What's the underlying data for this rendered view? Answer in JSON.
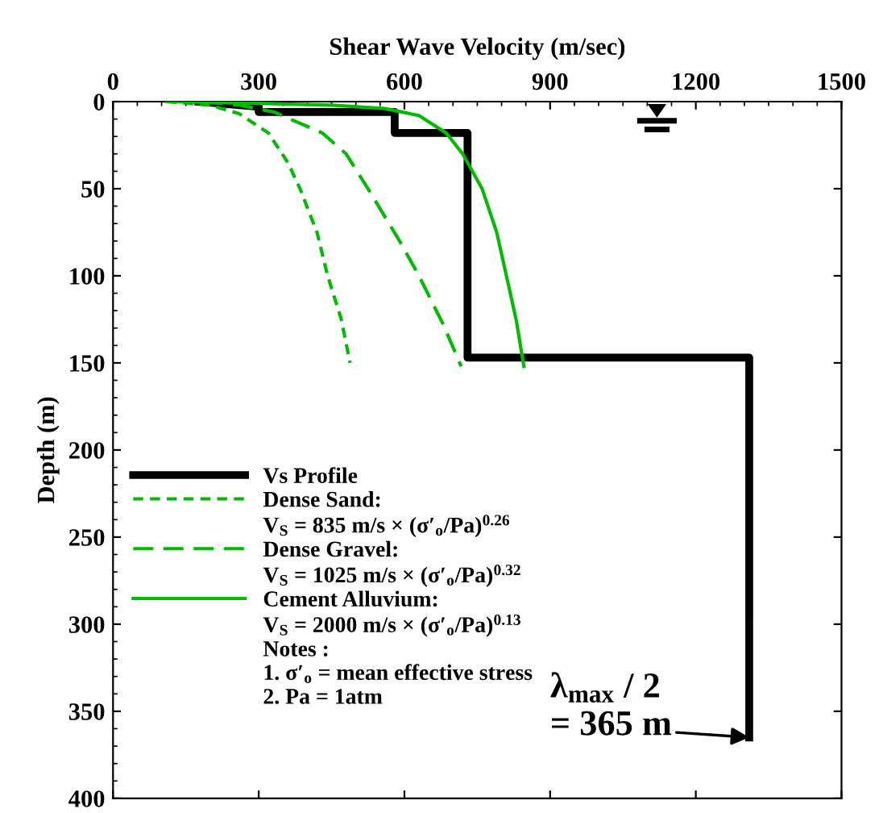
{
  "chart_data": {
    "type": "line",
    "xlabel": "Shear Wave Velocity (m/sec)",
    "ylabel": "Depth (m)",
    "xlim": [
      0,
      1500
    ],
    "xticks": [
      0,
      300,
      600,
      900,
      1200,
      1500
    ],
    "ylim": [
      400,
      0
    ],
    "yticks": [
      0,
      50,
      100,
      150,
      200,
      250,
      300,
      350,
      400
    ],
    "series": [
      {
        "name": "Vs Profile",
        "color": "#000000",
        "line_style": "solid",
        "x": [
          176,
          300,
          300,
          580,
          580,
          730,
          730,
          1310,
          1310
        ],
        "values": [
          0,
          3,
          6,
          6,
          18,
          18,
          147,
          147,
          365
        ]
      },
      {
        "name": "Dense Sand:",
        "color": "#00bb00",
        "line_style": "dashed",
        "x": [
          110,
          200,
          260,
          320,
          360,
          385,
          420,
          442,
          470,
          488
        ],
        "values": [
          0,
          2,
          7,
          18,
          35,
          50,
          75,
          100,
          125,
          150
        ]
      },
      {
        "name": "Dense Gravel:",
        "color": "#00bb00",
        "line_style": "longdash",
        "x": [
          185,
          260,
          332,
          431,
          480,
          525,
          590,
          630,
          680,
          717
        ],
        "values": [
          0,
          2,
          6,
          18,
          30,
          50,
          80,
          100,
          128,
          152
        ]
      },
      {
        "name": "Cement Alluvium:",
        "color": "#00bb00",
        "line_style": "solid",
        "x": [
          110,
          300,
          450,
          560,
          630,
          686,
          720,
          760,
          790,
          810,
          830,
          846
        ],
        "values": [
          0,
          1,
          2,
          4,
          8,
          18,
          30,
          50,
          75,
          100,
          125,
          152
        ]
      }
    ],
    "annotations": [
      "V$_{S}$ = 835 m/s × (σ′$_{o}$/Pa)$^{0.26}$",
      "V$_{S}$ = 1025 m/s × (σ′$_{o}$/Pa)$^{0.32}$",
      "V$_{S}$ = 2000 m/s × (σ′$_{o}$/Pa)$^{0.13}$",
      "Notes :",
      "1. σ′$_{o}$ = mean effective stress",
      "2. Pa = 1atm",
      {
        "text": "λ$_{max}$ / 2\n= 365 m",
        "x": 1310,
        "y": 365
      }
    ],
    "legend": "bottom left",
    "grid": false,
    "marker": "none"
  }
}
